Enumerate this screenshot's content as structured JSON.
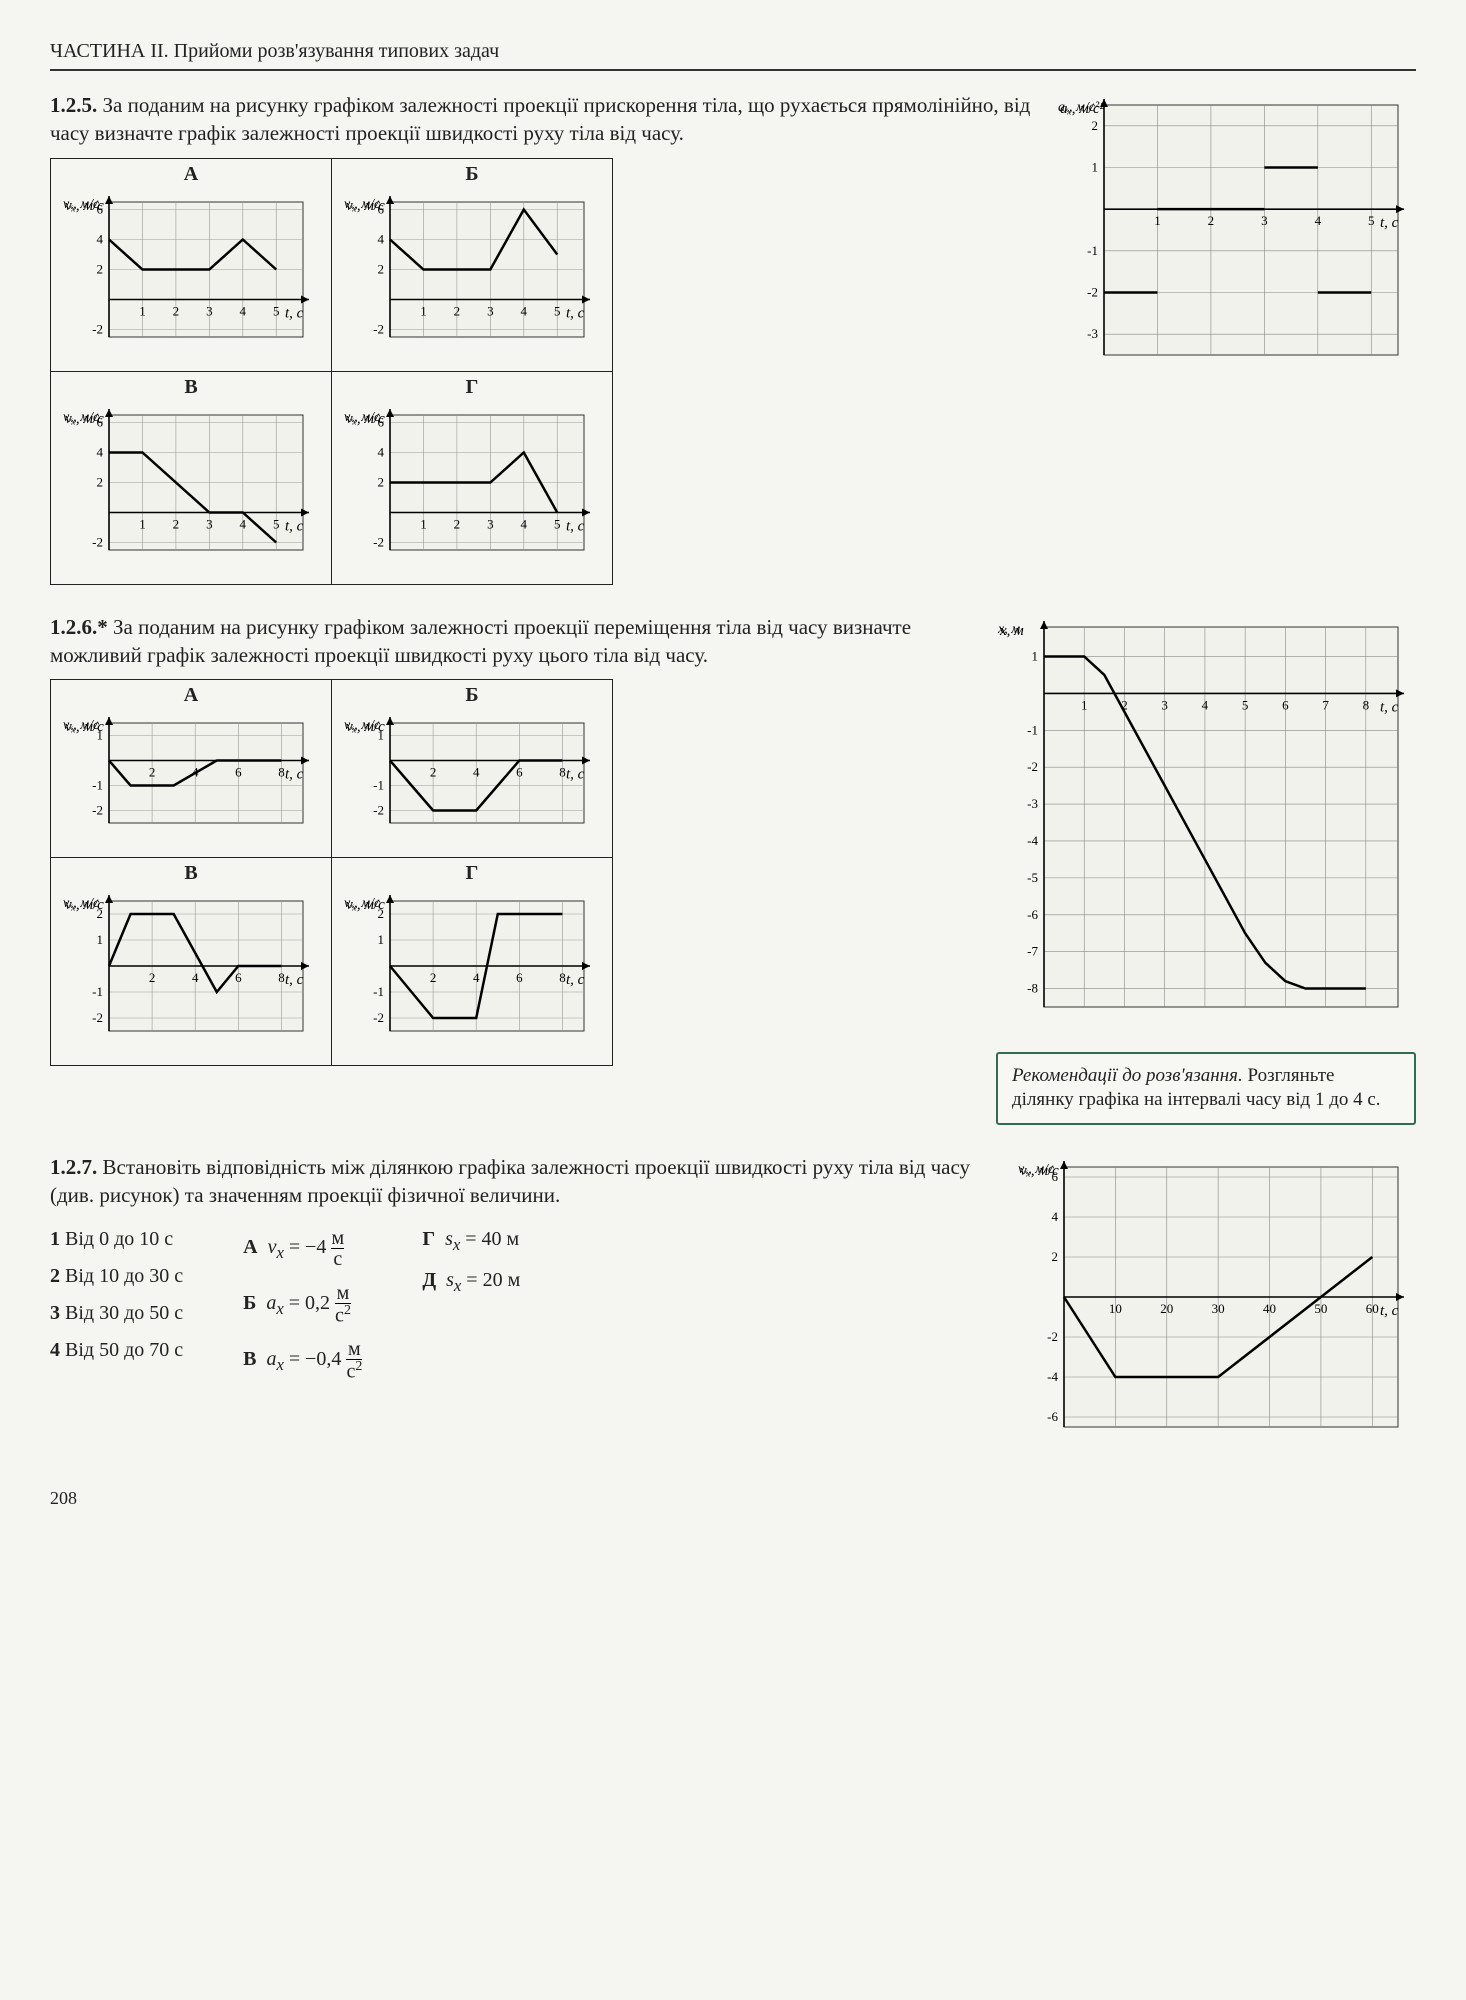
{
  "header": "ЧАСТИНА II. Прийоми розв'язування типових задач",
  "page_number": "208",
  "p125": {
    "num": "1.2.5.",
    "text": "За поданим на рисунку графіком залежності проекції прискорення тіла, що рухається прямолінійно, від часу визначте графік залежності проекції швидкості руху тіла від часу.",
    "sideChart": {
      "ylabel": "a_x, м/с²",
      "xlabel": "t, c",
      "xmin": 0,
      "xmax": 5.5,
      "xticks": [
        1,
        2,
        3,
        4,
        5
      ],
      "ymin": -3.5,
      "ymax": 2.5,
      "yticks": [
        -3,
        -2,
        -1,
        0,
        1,
        2
      ],
      "grid_color": "#888",
      "line_color": "#000",
      "bg": "#f0f0ea",
      "segments": [
        {
          "pts": [
            [
              0,
              -2
            ],
            [
              1,
              -2
            ]
          ]
        },
        {
          "pts": [
            [
              1,
              0
            ],
            [
              3,
              0
            ]
          ]
        },
        {
          "pts": [
            [
              3,
              1
            ],
            [
              4,
              1
            ]
          ]
        },
        {
          "pts": [
            [
              4,
              -2
            ],
            [
              5,
              -2
            ]
          ]
        }
      ]
    },
    "choices": {
      "A": {
        "label": "А",
        "ylabel": "v_x, м/с",
        "xlabel": "t, c",
        "xmin": 0,
        "xmax": 5.8,
        "xticks": [
          1,
          2,
          3,
          4,
          5
        ],
        "ymin": -2.5,
        "ymax": 6.5,
        "yticks": [
          -2,
          0,
          2,
          4,
          6
        ],
        "segments": [
          {
            "pts": [
              [
                0,
                4
              ],
              [
                1,
                2
              ],
              [
                3,
                2
              ],
              [
                4,
                4
              ],
              [
                5,
                2
              ]
            ]
          }
        ]
      },
      "B": {
        "label": "Б",
        "ylabel": "v_x, м/с",
        "xlabel": "t, c",
        "xmin": 0,
        "xmax": 5.8,
        "xticks": [
          1,
          2,
          3,
          4,
          5
        ],
        "ymin": -2.5,
        "ymax": 6.5,
        "yticks": [
          -2,
          0,
          2,
          4,
          6
        ],
        "segments": [
          {
            "pts": [
              [
                0,
                4
              ],
              [
                1,
                2
              ],
              [
                3,
                2
              ],
              [
                4,
                6
              ],
              [
                5,
                3
              ]
            ]
          }
        ]
      },
      "V": {
        "label": "В",
        "ylabel": "v_x, м/с",
        "xlabel": "t, c",
        "xmin": 0,
        "xmax": 5.8,
        "xticks": [
          1,
          2,
          3,
          4,
          5
        ],
        "ymin": -2.5,
        "ymax": 6.5,
        "yticks": [
          -2,
          0,
          2,
          4,
          6
        ],
        "segments": [
          {
            "pts": [
              [
                0,
                4
              ],
              [
                1,
                4
              ],
              [
                3,
                0
              ],
              [
                4,
                0
              ],
              [
                5,
                -2
              ]
            ]
          }
        ]
      },
      "G": {
        "label": "Г",
        "ylabel": "v_x, м/с",
        "xlabel": "t, c",
        "xmin": 0,
        "xmax": 5.8,
        "xticks": [
          1,
          2,
          3,
          4,
          5
        ],
        "ymin": -2.5,
        "ymax": 6.5,
        "yticks": [
          -2,
          0,
          2,
          4,
          6
        ],
        "segments": [
          {
            "pts": [
              [
                0,
                2
              ],
              [
                1,
                2
              ],
              [
                3,
                2
              ],
              [
                4,
                4
              ],
              [
                5,
                0
              ]
            ]
          }
        ]
      }
    }
  },
  "p126": {
    "num": "1.2.6.*",
    "text": "За поданим на рисунку графіком залежності проекції переміщення тіла від часу визначте можливий графік залежності проекції швидкості руху цього тіла від часу.",
    "sideChart": {
      "ylabel": "x, м",
      "xlabel": "t, c",
      "xmin": 0,
      "xmax": 8.8,
      "xticks": [
        1,
        2,
        3,
        4,
        5,
        6,
        7,
        8
      ],
      "ymin": -8.5,
      "ymax": 1.8,
      "yticks": [
        -8,
        -7,
        -6,
        -5,
        -4,
        -3,
        -2,
        -1,
        0,
        1
      ],
      "grid_color": "#888",
      "line_color": "#000",
      "bg": "#f0f0ea",
      "segments": [
        {
          "pts": [
            [
              0,
              1
            ],
            [
              1,
              1
            ],
            [
              1.5,
              0.5
            ],
            [
              2,
              -0.5
            ],
            [
              3,
              -2.5
            ],
            [
              4,
              -4.5
            ],
            [
              5,
              -6.5
            ],
            [
              5.5,
              -7.3
            ],
            [
              6,
              -7.8
            ],
            [
              6.5,
              -8
            ],
            [
              8,
              -8
            ]
          ]
        }
      ]
    },
    "reco": {
      "head": "Рекомендації до розв'язання.",
      "body": "Розгляньте ділянку графіка на інтервалі часу від 1 до 4 с."
    },
    "choices": {
      "A": {
        "label": "А",
        "ylabel": "v_x, м/с",
        "xlabel": "t, c",
        "xmin": 0,
        "xmax": 9,
        "xticks": [
          2,
          4,
          6,
          8
        ],
        "ymin": -2.5,
        "ymax": 1.5,
        "yticks": [
          -2,
          -1,
          0,
          1
        ],
        "segments": [
          {
            "pts": [
              [
                0,
                0
              ],
              [
                1,
                -1
              ],
              [
                3,
                -1
              ],
              [
                5,
                0
              ],
              [
                8,
                0
              ]
            ]
          }
        ]
      },
      "B": {
        "label": "Б",
        "ylabel": "v_x, м/с",
        "xlabel": "t, c",
        "xmin": 0,
        "xmax": 9,
        "xticks": [
          2,
          4,
          6,
          8
        ],
        "ymin": -2.5,
        "ymax": 1.5,
        "yticks": [
          -2,
          -1,
          0,
          1
        ],
        "segments": [
          {
            "pts": [
              [
                0,
                0
              ],
              [
                1,
                -1
              ],
              [
                2,
                -2
              ],
              [
                4,
                -2
              ],
              [
                5,
                -1
              ],
              [
                6,
                0
              ],
              [
                8,
                0
              ]
            ]
          }
        ]
      },
      "V": {
        "label": "В",
        "ylabel": "v_x, м/с",
        "xlabel": "t, c",
        "xmin": 0,
        "xmax": 9,
        "xticks": [
          2,
          4,
          6,
          8
        ],
        "ymin": -2.5,
        "ymax": 2.5,
        "yticks": [
          -2,
          -1,
          0,
          1,
          2
        ],
        "segments": [
          {
            "pts": [
              [
                0,
                0
              ],
              [
                1,
                2
              ],
              [
                3,
                2
              ],
              [
                5,
                -1
              ],
              [
                6,
                0
              ],
              [
                8,
                0
              ]
            ]
          }
        ]
      },
      "G": {
        "label": "Г",
        "ylabel": "v_x, м/с",
        "xlabel": "t, c",
        "xmin": 0,
        "xmax": 9,
        "xticks": [
          2,
          4,
          6,
          8
        ],
        "ymin": -2.5,
        "ymax": 2.5,
        "yticks": [
          -2,
          -1,
          0,
          1,
          2
        ],
        "segments": [
          {
            "pts": [
              [
                0,
                0
              ],
              [
                1,
                -1
              ],
              [
                2,
                -2
              ],
              [
                4,
                -2
              ],
              [
                5,
                2
              ],
              [
                6,
                2
              ],
              [
                8,
                2
              ]
            ]
          }
        ]
      }
    }
  },
  "p127": {
    "num": "1.2.7.",
    "text": "Встановіть відповідність між ділянкою графіка залежності проекції швидкості руху тіла від часу (див. рисунок) та значенням проекції фізичної величини.",
    "left": [
      {
        "n": "1",
        "t": "Від 0 до 10 с"
      },
      {
        "n": "2",
        "t": "Від 10 до 30 с"
      },
      {
        "n": "3",
        "t": "Від 30 до 50 с"
      },
      {
        "n": "4",
        "t": "Від 50 до 70 с"
      }
    ],
    "right": [
      {
        "n": "А",
        "t": "v_x = −4 м/с"
      },
      {
        "n": "Б",
        "t": "a_x = 0,2 м/с²"
      },
      {
        "n": "В",
        "t": "a_x = −0,4 м/с²"
      },
      {
        "n": "Г",
        "t": "s_x = 40 м"
      },
      {
        "n": "Д",
        "t": "s_x = 20 м"
      }
    ],
    "chart": {
      "ylabel": "v_x, м/с",
      "xlabel": "t, c",
      "xmin": 0,
      "xmax": 65,
      "xticks": [
        10,
        20,
        30,
        40,
        50,
        60
      ],
      "ymin": -6.5,
      "ymax": 6.5,
      "yticks": [
        -6,
        -4,
        -2,
        0,
        2,
        4,
        6
      ],
      "grid_color": "#888",
      "line_color": "#000",
      "bg": "#f0f0ea",
      "segments": [
        {
          "pts": [
            [
              0,
              0
            ],
            [
              10,
              -4
            ],
            [
              30,
              -4
            ],
            [
              50,
              0
            ],
            [
              60,
              2
            ]
          ]
        }
      ]
    }
  },
  "chartStyle": {
    "axis_color": "#000",
    "grid_color": "#999",
    "line_width": 2.5,
    "tick_font": "14px serif"
  }
}
